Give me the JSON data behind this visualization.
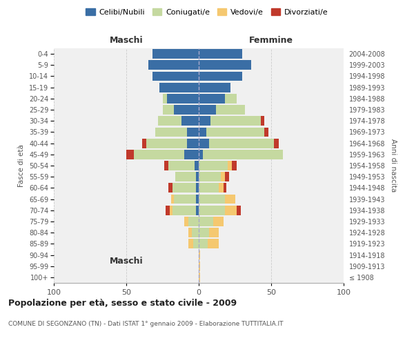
{
  "age_groups": [
    "100+",
    "95-99",
    "90-94",
    "85-89",
    "80-84",
    "75-79",
    "70-74",
    "65-69",
    "60-64",
    "55-59",
    "50-54",
    "45-49",
    "40-44",
    "35-39",
    "30-34",
    "25-29",
    "20-24",
    "15-19",
    "10-14",
    "5-9",
    "0-4"
  ],
  "birth_years": [
    "≤ 1908",
    "1909-1913",
    "1914-1918",
    "1919-1923",
    "1924-1928",
    "1929-1933",
    "1934-1938",
    "1939-1943",
    "1944-1948",
    "1949-1953",
    "1954-1958",
    "1959-1963",
    "1964-1968",
    "1969-1973",
    "1974-1978",
    "1979-1983",
    "1984-1988",
    "1989-1993",
    "1994-1998",
    "1999-2003",
    "2004-2008"
  ],
  "colors": {
    "celibe": "#3a6ea5",
    "coniugato": "#c5d9a0",
    "vedovo": "#f5c870",
    "divorziato": "#c0392b"
  },
  "males": {
    "celibe": [
      0,
      0,
      0,
      0,
      0,
      0,
      2,
      2,
      2,
      2,
      3,
      10,
      8,
      8,
      12,
      17,
      22,
      27,
      32,
      35,
      32
    ],
    "coniugato": [
      0,
      0,
      0,
      4,
      5,
      7,
      16,
      15,
      16,
      14,
      18,
      35,
      28,
      22,
      16,
      8,
      3,
      0,
      0,
      0,
      0
    ],
    "vedovo": [
      0,
      0,
      0,
      3,
      2,
      3,
      2,
      2,
      0,
      0,
      0,
      0,
      0,
      0,
      0,
      0,
      0,
      0,
      0,
      0,
      0
    ],
    "divorziato": [
      0,
      0,
      0,
      0,
      0,
      0,
      3,
      0,
      3,
      0,
      3,
      5,
      3,
      0,
      0,
      0,
      0,
      0,
      0,
      0,
      0
    ]
  },
  "females": {
    "nubile": [
      0,
      0,
      0,
      0,
      0,
      0,
      0,
      0,
      0,
      0,
      0,
      3,
      7,
      5,
      8,
      12,
      18,
      22,
      30,
      36,
      30
    ],
    "coniugata": [
      0,
      0,
      0,
      6,
      7,
      10,
      18,
      18,
      14,
      15,
      20,
      55,
      45,
      40,
      35,
      20,
      8,
      0,
      0,
      0,
      0
    ],
    "vedova": [
      1,
      1,
      1,
      8,
      7,
      7,
      8,
      7,
      3,
      3,
      3,
      0,
      0,
      0,
      0,
      0,
      0,
      0,
      0,
      0,
      0
    ],
    "divorziata": [
      0,
      0,
      0,
      0,
      0,
      0,
      3,
      0,
      2,
      3,
      3,
      0,
      3,
      3,
      2,
      0,
      0,
      0,
      0,
      0,
      0
    ]
  },
  "xlim": 100,
  "title": "Popolazione per età, sesso e stato civile - 2009",
  "subtitle": "COMUNE DI SEGONZANO (TN) - Dati ISTAT 1° gennaio 2009 - Elaborazione TUTTITALIA.IT",
  "ylabel_left": "Fasce di età",
  "ylabel_right": "Anni di nascita",
  "xlabel_maschi": "Maschi",
  "xlabel_femmine": "Femmine",
  "bg_color": "#f0f0f0",
  "bar_height": 0.85
}
